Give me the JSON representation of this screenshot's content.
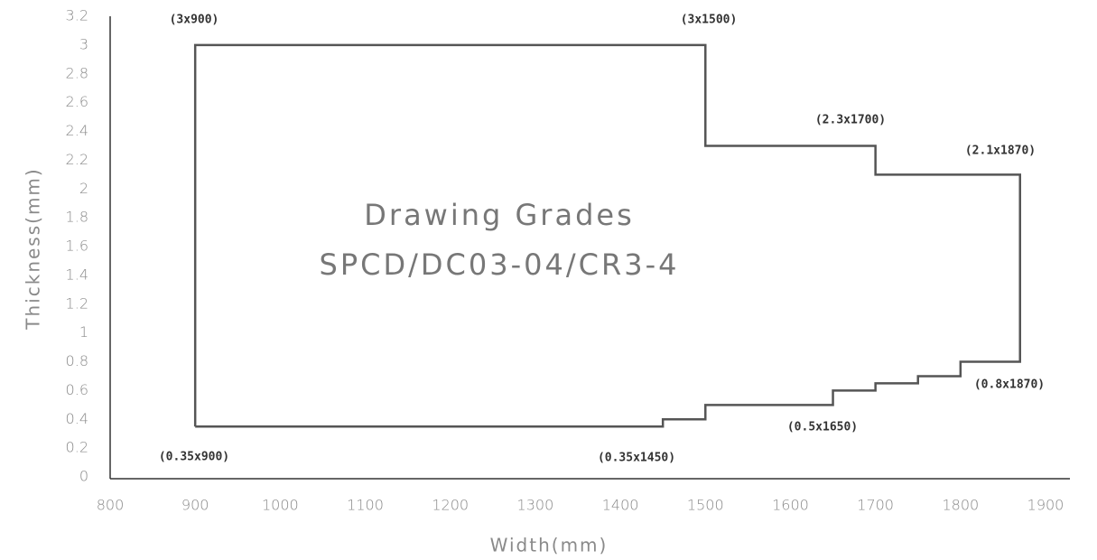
{
  "chart_data": {
    "type": "line",
    "x_label": "Width(mm)",
    "y_label": "Thickness(mm)",
    "xlim": [
      800,
      1900
    ],
    "xticks": [
      800,
      900,
      1000,
      1100,
      1200,
      1300,
      1400,
      1500,
      1600,
      1700,
      1800,
      1900
    ],
    "ylim": [
      0,
      3.2
    ],
    "yticks": [
      0,
      0.2,
      0.4,
      0.6,
      0.8,
      1,
      1.2,
      1.4,
      1.6,
      1.8,
      2,
      2.2,
      2.4,
      2.6,
      2.8,
      3,
      3.2
    ],
    "grid": false,
    "series": [
      {
        "color": "#555555",
        "x": [
          900,
          900,
          1500,
          1500,
          1700,
          1700,
          1870,
          1870,
          1800,
          1800,
          1750,
          1750,
          1700,
          1700,
          1650,
          1650,
          1500,
          1500,
          1450,
          1450,
          900
        ],
        "values": [
          0.35,
          3,
          3,
          2.3,
          2.3,
          2.1,
          2.1,
          0.8,
          0.8,
          0.7,
          0.7,
          0.65,
          0.65,
          0.6,
          0.6,
          0.5,
          0.5,
          0.4,
          0.4,
          0.35,
          0.35
        ]
      }
    ],
    "annotations": [
      "(3x900)",
      "(3x1500)",
      "(2.3x1700)",
      "(2.1x1870)",
      "(0.8x1870)",
      "(0.5x1650)",
      "(0.35x1450)",
      "(0.35x900)",
      "Drawing Grades",
      "SPCD/DC03-04/CR3-4"
    ]
  }
}
